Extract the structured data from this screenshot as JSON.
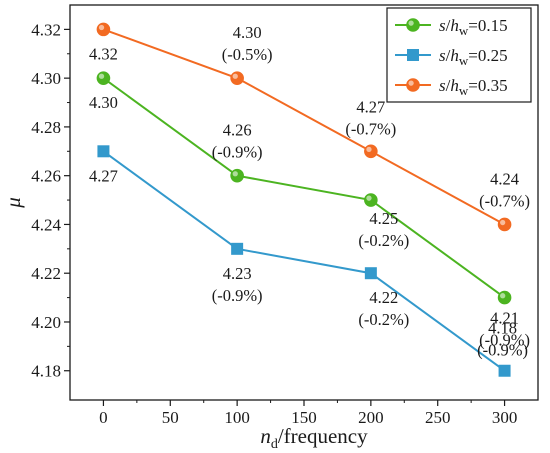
{
  "chart_data": {
    "type": "line",
    "x": [
      0,
      100,
      200,
      300
    ],
    "xlabel": {
      "main": "n",
      "sub": "d",
      "rest": "/frequency"
    },
    "ylabel": "μ",
    "xlim": [
      -25,
      325
    ],
    "ylim": [
      4.168,
      4.33
    ],
    "xticks": [
      0,
      50,
      100,
      150,
      200,
      250,
      300
    ],
    "yticks": [
      4.18,
      4.2,
      4.22,
      4.24,
      4.26,
      4.28,
      4.3,
      4.32
    ],
    "grid": false,
    "legend_position": "top-right",
    "series": [
      {
        "legend": {
          "sym": "s",
          "slash": "/",
          "h": "h",
          "sub": "w",
          "val": "=0.15"
        },
        "color": "#4cb421",
        "marker": "circle",
        "values": [
          4.3,
          4.26,
          4.25,
          4.21
        ],
        "labels": [
          "4.30",
          "4.26\n(-0.9%)",
          "4.25\n(-0.2%)",
          "4.21\n(-0.9%)"
        ]
      },
      {
        "legend": {
          "sym": "s",
          "slash": "/",
          "h": "h",
          "sub": "w",
          "val": "=0.25"
        },
        "color": "#3399cc",
        "marker": "square",
        "values": [
          4.27,
          4.23,
          4.22,
          4.18
        ],
        "labels": [
          "4.27",
          "4.23\n(-0.9%)",
          "4.22\n(-0.2%)",
          "4.18\n(-0.9%)"
        ]
      },
      {
        "legend": {
          "sym": "s",
          "slash": "/",
          "h": "h",
          "sub": "w",
          "val": "=0.35"
        },
        "color": "#f26a22",
        "marker": "circle",
        "values": [
          4.32,
          4.3,
          4.27,
          4.24
        ],
        "labels": [
          "4.32",
          "4.30\n(-0.5%)",
          "4.27\n(-0.7%)",
          "4.24\n(-0.7%)"
        ]
      }
    ]
  }
}
